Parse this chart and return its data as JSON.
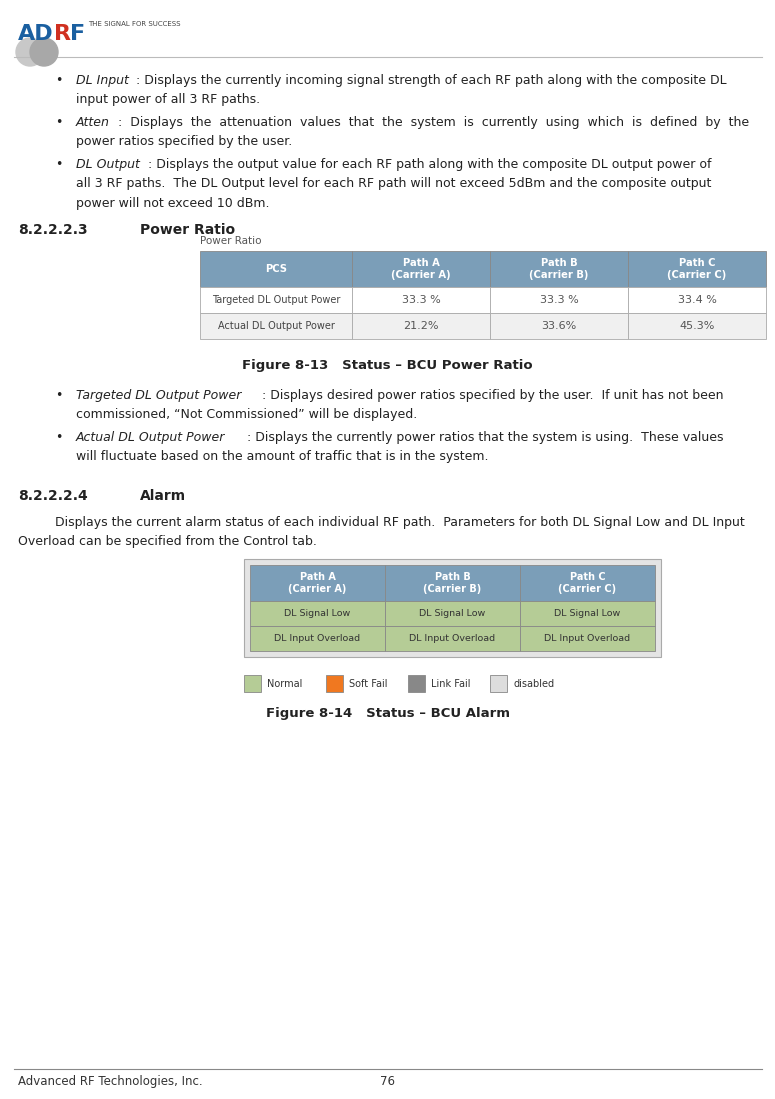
{
  "bg_color": "#ffffff",
  "page_number": "76",
  "footer_text": "Advanced RF Technologies, Inc.",
  "power_ratio_table": {
    "title": "Power Ratio",
    "header_bg": "#7b9eb8",
    "header_text_color": "#ffffff",
    "row_bg": [
      "#ffffff",
      "#f0f0f0"
    ],
    "border_color": "#aaaaaa",
    "col_header": "PCS",
    "columns": [
      "Path A\n(Carrier A)",
      "Path B\n(Carrier B)",
      "Path C\n(Carrier C)"
    ],
    "rows": [
      {
        "label": "Targeted DL Output Power",
        "values": [
          "33.3 %",
          "33.3 %",
          "33.4 %"
        ]
      },
      {
        "label": "Actual DL Output Power",
        "values": [
          "21.2%",
          "33.6%",
          "45.3%"
        ]
      }
    ]
  },
  "figure_813_caption": "Figure 8-13   Status – BCU Power Ratio",
  "alarm_table": {
    "header_bg": "#7b9eb8",
    "cell_bg": "#b5cc96",
    "outer_bg": "#e4e4e4",
    "columns": [
      "Path A\n(Carrier A)",
      "Path B\n(Carrier B)",
      "Path C\n(Carrier C)"
    ],
    "rows": [
      [
        "DL Signal Low",
        "DL Signal Low",
        "DL Signal Low"
      ],
      [
        "DL Input Overload",
        "DL Input Overload",
        "DL Input Overload"
      ]
    ]
  },
  "legend_items": [
    {
      "label": "Normal",
      "color": "#b5cc96"
    },
    {
      "label": "Soft Fail",
      "color": "#f07820"
    },
    {
      "label": "Link Fail",
      "color": "#888888"
    },
    {
      "label": "disabled",
      "color": "#dddddd"
    }
  ],
  "figure_814_caption": "Figure 8-14   Status – BCU Alarm"
}
